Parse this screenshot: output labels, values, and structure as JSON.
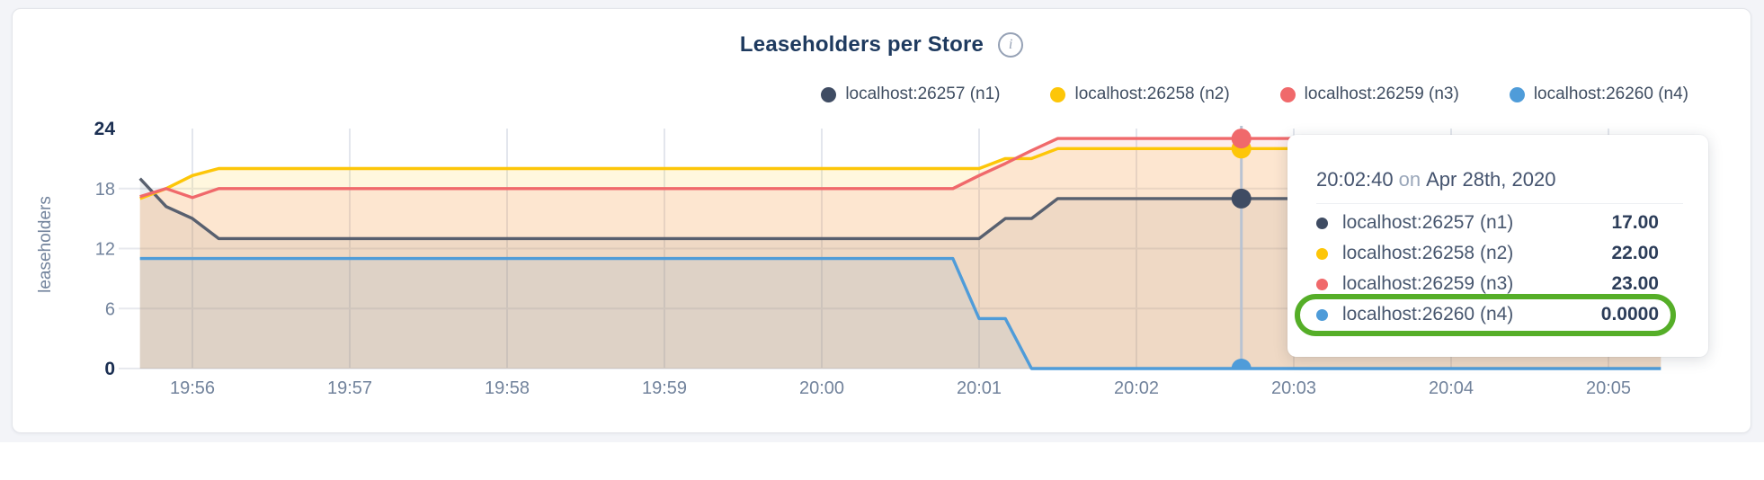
{
  "page": {
    "background": "#f3f4f8",
    "card_background": "#ffffff"
  },
  "header": {
    "title": "Leaseholders per Store",
    "info_icon": "i"
  },
  "legend": {
    "items": [
      {
        "label": "localhost:26257 (n1)",
        "color": "#3f4c63"
      },
      {
        "label": "localhost:26258 (n2)",
        "color": "#fdc608"
      },
      {
        "label": "localhost:26259 (n3)",
        "color": "#f0696b"
      },
      {
        "label": "localhost:26260 (n4)",
        "color": "#4f9cd9"
      }
    ]
  },
  "chart_data": {
    "type": "area",
    "title": "Leaseholders per Store",
    "xlabel": "",
    "ylabel": "leaseholders",
    "ylim": [
      0,
      24
    ],
    "yticks": [
      0,
      6,
      12,
      18,
      24
    ],
    "xticks": [
      "19:56",
      "19:57",
      "19:58",
      "19:59",
      "20:00",
      "20:01",
      "20:02",
      "20:03",
      "20:04",
      "20:05"
    ],
    "x_range": [
      "19:55:40",
      "20:05:20"
    ],
    "grid": true,
    "legend_position": "top-right",
    "series": [
      {
        "name": "localhost:26257 (n1)",
        "color": "#58606f",
        "dot_color": "#3f4c63",
        "fill": "rgba(80,95,120,0.10)",
        "points": [
          [
            "19:55:40",
            19
          ],
          [
            "19:55:50",
            16.2
          ],
          [
            "19:56:00",
            15
          ],
          [
            "19:56:10",
            13
          ],
          [
            "20:01:00",
            13
          ],
          [
            "20:01:10",
            15
          ],
          [
            "20:01:20",
            15
          ],
          [
            "20:01:30",
            17
          ],
          [
            "20:05:20",
            17
          ]
        ]
      },
      {
        "name": "localhost:26258 (n2)",
        "color": "#fdc608",
        "dot_color": "#fdc608",
        "fill": "rgba(254,200,20,0.14)",
        "points": [
          [
            "19:55:40",
            17
          ],
          [
            "19:55:50",
            18
          ],
          [
            "19:56:00",
            19.3
          ],
          [
            "19:56:10",
            20
          ],
          [
            "20:01:00",
            20
          ],
          [
            "20:01:10",
            21
          ],
          [
            "20:01:20",
            21
          ],
          [
            "20:01:30",
            22
          ],
          [
            "20:05:20",
            22
          ]
        ]
      },
      {
        "name": "localhost:26259 (n3)",
        "color": "#f0696b",
        "dot_color": "#f0696b",
        "fill": "rgba(242,110,110,0.12)",
        "points": [
          [
            "19:55:40",
            17.2
          ],
          [
            "19:55:50",
            18
          ],
          [
            "19:56:00",
            17.1
          ],
          [
            "19:56:10",
            18
          ],
          [
            "20:00:50",
            18
          ],
          [
            "20:01:00",
            19.3
          ],
          [
            "20:01:10",
            20.5
          ],
          [
            "20:01:20",
            21.8
          ],
          [
            "20:01:30",
            23
          ],
          [
            "20:05:20",
            23
          ]
        ]
      },
      {
        "name": "localhost:26260 (n4)",
        "color": "#4f9cd9",
        "dot_color": "#4f9cd9",
        "fill": "rgba(77,154,211,0.10)",
        "points": [
          [
            "19:55:40",
            11
          ],
          [
            "20:00:50",
            11
          ],
          [
            "20:01:00",
            5
          ],
          [
            "20:01:10",
            5
          ],
          [
            "20:01:20",
            0
          ],
          [
            "20:05:20",
            0
          ]
        ]
      }
    ],
    "hover": {
      "time": "20:02:40",
      "values": [
        17,
        22,
        23,
        0
      ]
    }
  },
  "tooltip": {
    "time": "20:02:40",
    "on_word": "on",
    "date": "Apr 28th, 2020",
    "rows": [
      {
        "label": "localhost:26257 (n1)",
        "value": "17.00",
        "color": "#3f4c63",
        "highlighted": false
      },
      {
        "label": "localhost:26258 (n2)",
        "value": "22.00",
        "color": "#fdc608",
        "highlighted": false
      },
      {
        "label": "localhost:26259 (n3)",
        "value": "23.00",
        "color": "#f0696b",
        "highlighted": false
      },
      {
        "label": "localhost:26260 (n4)",
        "value": "0.0000",
        "color": "#4f9cd9",
        "highlighted": true
      }
    ],
    "highlight_color": "#55ae28"
  }
}
